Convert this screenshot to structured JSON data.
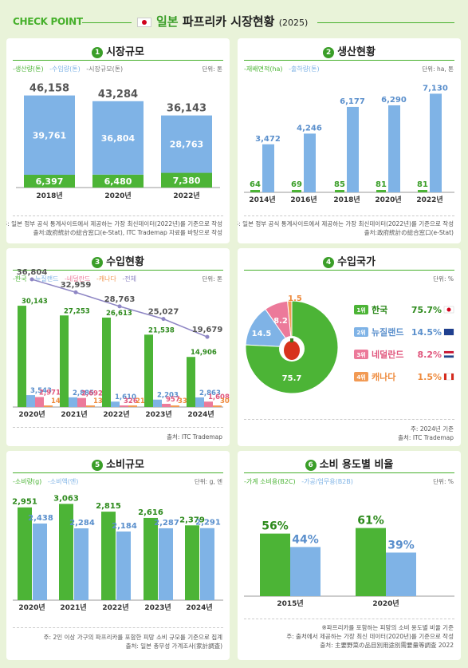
{
  "header": {
    "checkpoint": "CHECK POINT",
    "title_a": "일본",
    "title_b": "파프리카 시장현황",
    "year": "(2025)"
  },
  "panels": [
    {
      "num": "1",
      "title": "시장규모",
      "legend": [
        "-생산량(톤)",
        "-수입량(톤)",
        "-시장규모(톤)"
      ],
      "unit": "단위: 톤",
      "notes": [
        "주: 일본 정부 공식 통계사이트에서 제공하는 가장 최신데이터(2022년)를 기준으로 작성",
        "출처:政府統計の総合窓口(e-Stat), ITC Trademap 자료를 바탕으로 작성"
      ]
    },
    {
      "num": "2",
      "title": "생산현황",
      "legend": [
        "-재배면적(ha)",
        "-출하량(톤)"
      ],
      "unit": "단위: ha, 톤",
      "notes": [
        "주: 일본 정부 공식 통계사이트에서 제공하는 가장 최신데이터(2022년)를 기준으로 작성",
        "출처:政府統計の総合窓口(e-Stat)"
      ]
    },
    {
      "num": "3",
      "title": "수입현황",
      "legend": [
        "-한국",
        "-뉴질랜드",
        "-네덜란드",
        "-캐나다",
        "-전체"
      ],
      "unit": "단위: 톤",
      "notes": [
        "출처: ITC Trademap"
      ]
    },
    {
      "num": "4",
      "title": "수입국가",
      "legend": [],
      "unit": "단위: %",
      "notes": [
        "주: 2024년 기준",
        "출처: ITC Trademap"
      ]
    },
    {
      "num": "5",
      "title": "소비규모",
      "legend": [
        "-소비량(g)",
        "-소비액(엔)"
      ],
      "unit": "단위: g, 엔",
      "notes": [
        "주: 2인 이상 가구의 파프리카를 포함한 피망 소비 규모를 기준으로 집계",
        "출처: 일본 총무성 가계조사(家計調査)"
      ]
    },
    {
      "num": "6",
      "title": "소비 용도별 비율",
      "legend": [
        "-가계 소비용(B2C)",
        "-가공/업무용(B2B)"
      ],
      "unit": "단위: %",
      "notes": [
        "※파프리카를 포함하는 피망의 소비 용도별 비율 기준",
        "주: 출처에서 제공하는 가장 최신 데이터(2020년)를 기준으로 작성",
        "출처: 主要野菜の品目別用途別需要量等調査 2022"
      ]
    }
  ],
  "rank_labels": [
    "1위",
    "2위",
    "3위",
    "4위"
  ],
  "colors": {
    "green": "#4cb436",
    "blue": "#7fb3e6",
    "pink": "#ec7a9a",
    "orange": "#f29a54",
    "purple": "#8e86c4",
    "darkgreen": "#3a9e28"
  },
  "chart_data": [
    {
      "type": "bar",
      "title": "시장규모",
      "categories": [
        "2018년",
        "2020년",
        "2022년"
      ],
      "series": [
        {
          "name": "생산량(톤)",
          "values": [
            6397,
            6480,
            7380
          ]
        },
        {
          "name": "수입량(톤)",
          "values": [
            39761,
            36804,
            28763
          ]
        }
      ],
      "totals": [
        46158,
        43284,
        36143
      ],
      "stacked": true
    },
    {
      "type": "bar",
      "title": "생산현황",
      "categories": [
        "2014년",
        "2016년",
        "2018년",
        "2020년",
        "2022년"
      ],
      "series": [
        {
          "name": "재배면적(ha)",
          "values": [
            64,
            69,
            85,
            81,
            81
          ]
        },
        {
          "name": "출하량(톤)",
          "values": [
            3472,
            4246,
            6177,
            6290,
            7130
          ]
        }
      ]
    },
    {
      "type": "bar",
      "title": "수입현황",
      "categories": [
        "2020년",
        "2021년",
        "2022년",
        "2023년",
        "2024년"
      ],
      "series": [
        {
          "name": "한국",
          "values": [
            30143,
            27253,
            26613,
            21538,
            14906
          ]
        },
        {
          "name": "뉴질랜드",
          "values": [
            3543,
            2885,
            1610,
            2203,
            2863
          ]
        },
        {
          "name": "네덜란드",
          "values": [
            2971,
            2692,
            326,
            957,
            1608
          ]
        },
        {
          "name": "캐나다",
          "values": [
            145,
            130,
            214,
            330,
            302
          ]
        }
      ],
      "line": {
        "name": "전체",
        "values": [
          36804,
          32959,
          28763,
          25027,
          19679
        ]
      }
    },
    {
      "type": "pie",
      "title": "수입국가",
      "slices": [
        {
          "name": "한국",
          "value": 75.7
        },
        {
          "name": "뉴질랜드",
          "value": 14.5
        },
        {
          "name": "네덜란드",
          "value": 8.2
        },
        {
          "name": "캐나다",
          "value": 1.5
        }
      ]
    },
    {
      "type": "bar",
      "title": "소비규모",
      "categories": [
        "2020년",
        "2021년",
        "2022년",
        "2023년",
        "2024년"
      ],
      "series": [
        {
          "name": "소비량(g)",
          "values": [
            2951,
            3063,
            2815,
            2616,
            2379
          ]
        },
        {
          "name": "소비액(엔)",
          "values": [
            2438,
            2284,
            2184,
            2287,
            2291
          ]
        }
      ]
    },
    {
      "type": "bar",
      "title": "소비 용도별 비율",
      "categories": [
        "2015년",
        "2020년"
      ],
      "series": [
        {
          "name": "가계 소비용(B2C)",
          "values": [
            56,
            61
          ]
        },
        {
          "name": "가공/업무용(B2B)",
          "values": [
            44,
            39
          ]
        }
      ]
    }
  ]
}
